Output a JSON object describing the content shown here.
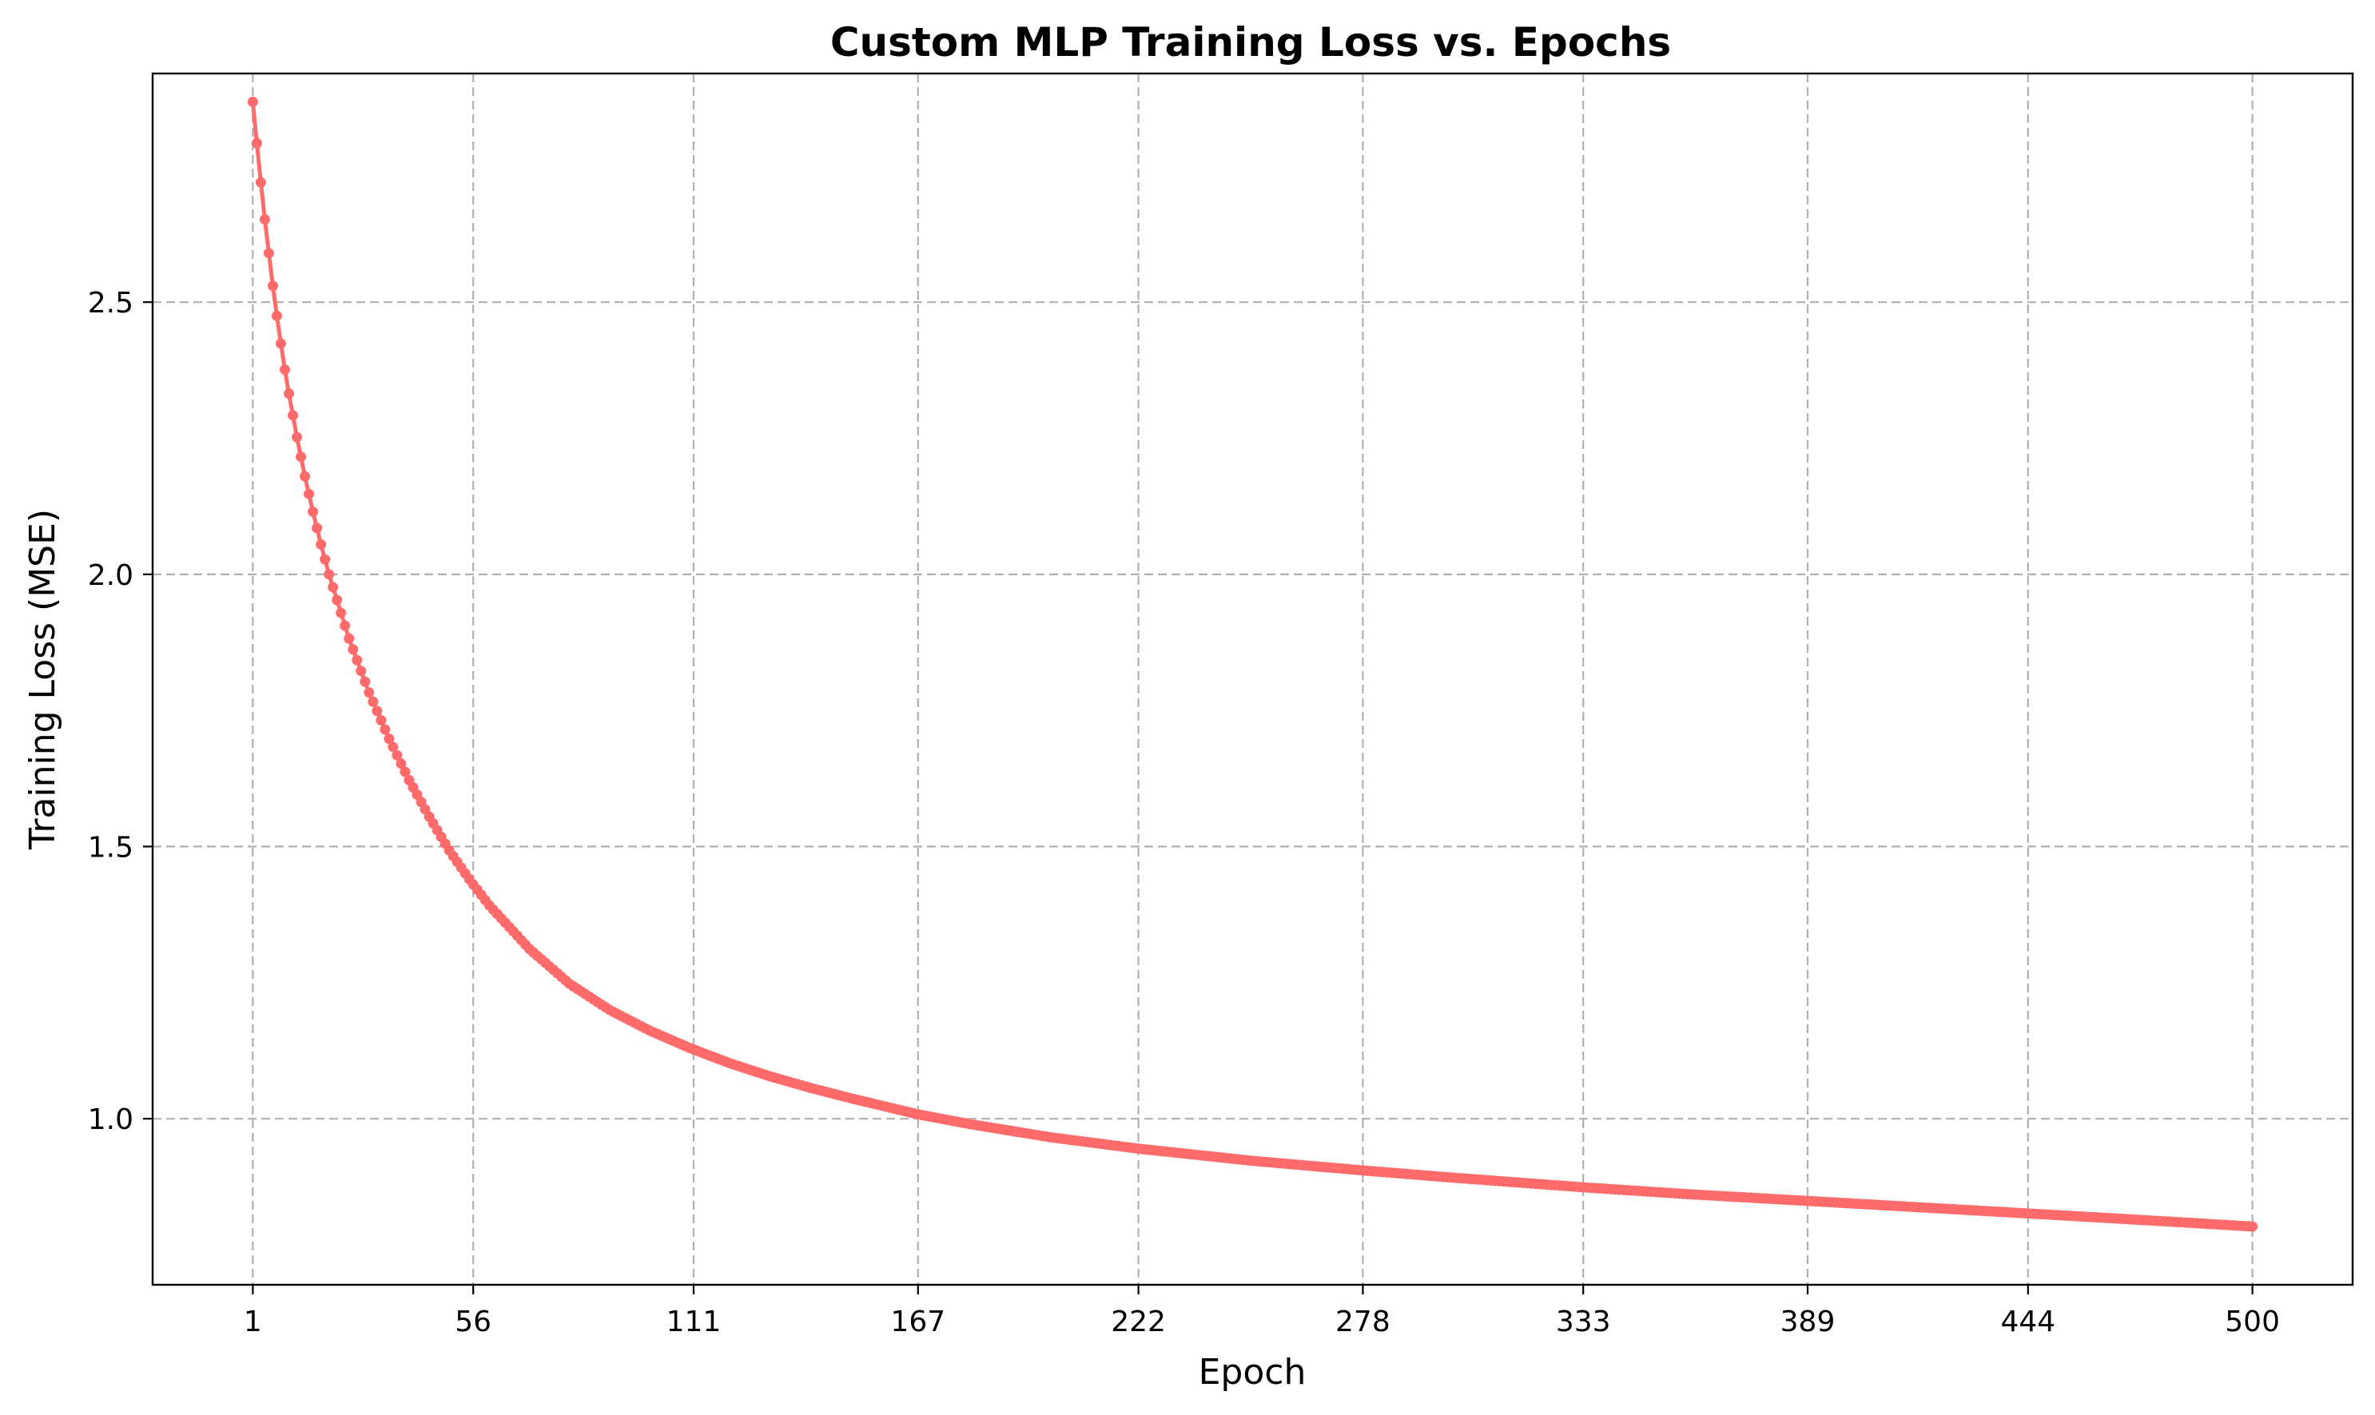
{
  "chart_data": {
    "type": "line",
    "title": "Custom MLP Training Loss vs. Epochs",
    "xlabel": "Epoch",
    "ylabel": "Training Loss (MSE)",
    "xlim": [
      -24,
      525
    ],
    "ylim": [
      0.695,
      2.92
    ],
    "x_ticks": [
      1,
      56,
      111,
      167,
      222,
      278,
      333,
      389,
      444,
      500
    ],
    "x_tick_labels": [
      "1",
      "56",
      "111",
      "167",
      "222",
      "278",
      "333",
      "389",
      "444",
      "500"
    ],
    "y_ticks": [
      1.0,
      1.5,
      2.0,
      2.5
    ],
    "y_tick_labels": [
      "1.0",
      "1.5",
      "2.0",
      "2.5"
    ],
    "grid": true,
    "series": [
      {
        "color": "#ff6b6b",
        "marker": "circle",
        "x_range": [
          1,
          500
        ],
        "points": [
          [
            1,
            2.868
          ],
          [
            2,
            2.792
          ],
          [
            3,
            2.72
          ],
          [
            4,
            2.652
          ],
          [
            5,
            2.59
          ],
          [
            6,
            2.53
          ],
          [
            7,
            2.475
          ],
          [
            8,
            2.424
          ],
          [
            9,
            2.376
          ],
          [
            10,
            2.332
          ],
          [
            12,
            2.252
          ],
          [
            14,
            2.18
          ],
          [
            16,
            2.115
          ],
          [
            18,
            2.055
          ],
          [
            20,
            2.0
          ],
          [
            25,
            1.882
          ],
          [
            30,
            1.783
          ],
          [
            35,
            1.698
          ],
          [
            40,
            1.622
          ],
          [
            45,
            1.555
          ],
          [
            50,
            1.493
          ],
          [
            55,
            1.44
          ],
          [
            60,
            1.392
          ],
          [
            70,
            1.312
          ],
          [
            80,
            1.248
          ],
          [
            90,
            1.2
          ],
          [
            100,
            1.162
          ],
          [
            110,
            1.13
          ],
          [
            120,
            1.102
          ],
          [
            130,
            1.078
          ],
          [
            140,
            1.057
          ],
          [
            150,
            1.038
          ],
          [
            167,
            1.008
          ],
          [
            180,
            0.99
          ],
          [
            200,
            0.966
          ],
          [
            222,
            0.945
          ],
          [
            250,
            0.923
          ],
          [
            278,
            0.905
          ],
          [
            300,
            0.892
          ],
          [
            333,
            0.874
          ],
          [
            360,
            0.861
          ],
          [
            389,
            0.849
          ],
          [
            420,
            0.836
          ],
          [
            444,
            0.826
          ],
          [
            470,
            0.815
          ],
          [
            500,
            0.802
          ]
        ]
      }
    ]
  }
}
